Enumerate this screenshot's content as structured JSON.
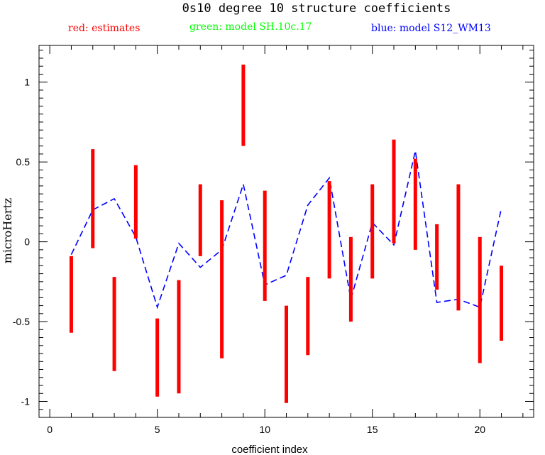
{
  "chart_data": {
    "type": "errorbar+line",
    "title": "0s10 degree 10 structure coefficients",
    "legend": [
      {
        "label": "red: estimates",
        "color": "#ff0000"
      },
      {
        "label": "green: model SH.10c.17",
        "color": "#00ff00"
      },
      {
        "label": "blue: model S12_WM13",
        "color": "#0000ff"
      }
    ],
    "xlabel": "coefficient index",
    "ylabel": "microHertz",
    "xlim": [
      -0.5,
      22.5
    ],
    "ylim": [
      -1.1,
      1.23
    ],
    "xticks": [
      0,
      5,
      10,
      15,
      20
    ],
    "xtick_labels": [
      "0",
      "5",
      "10",
      "15",
      "20"
    ],
    "yticks": [
      -1,
      -0.5,
      0,
      0.5,
      1
    ],
    "ytick_labels": [
      "-1",
      "-0.5",
      "0",
      "0.5",
      "1"
    ],
    "estimates": {
      "name": "estimates",
      "color": "#ff0000",
      "x": [
        1,
        2,
        3,
        4,
        5,
        6,
        7,
        8,
        9,
        10,
        11,
        12,
        13,
        14,
        15,
        16,
        17,
        18,
        19,
        20,
        21
      ],
      "low": [
        -0.57,
        -0.04,
        -0.81,
        0.02,
        -0.97,
        -0.95,
        -0.09,
        -0.73,
        0.6,
        -0.37,
        -1.01,
        -0.71,
        -0.23,
        -0.5,
        -0.23,
        -0.01,
        -0.05,
        -0.3,
        -0.43,
        -0.76,
        -0.62
      ],
      "high": [
        -0.09,
        0.58,
        -0.22,
        0.48,
        -0.48,
        -0.24,
        0.36,
        0.26,
        1.11,
        0.32,
        -0.4,
        -0.22,
        0.38,
        0.03,
        0.36,
        0.64,
        0.52,
        0.11,
        0.36,
        0.03,
        -0.15
      ]
    },
    "series": [
      {
        "name": "S12_WM13",
        "color": "#0000ff",
        "style": "dashed",
        "x": [
          1,
          2,
          3,
          4,
          5,
          6,
          7,
          8,
          9,
          10,
          11,
          12,
          13,
          14,
          15,
          16,
          17,
          18,
          19,
          20,
          21
        ],
        "values": [
          -0.08,
          0.2,
          0.27,
          0.03,
          -0.41,
          -0.01,
          -0.16,
          -0.05,
          0.36,
          -0.27,
          -0.21,
          0.23,
          0.4,
          -0.36,
          0.12,
          -0.02,
          0.57,
          -0.38,
          -0.36,
          -0.41,
          0.21
        ]
      }
    ]
  }
}
